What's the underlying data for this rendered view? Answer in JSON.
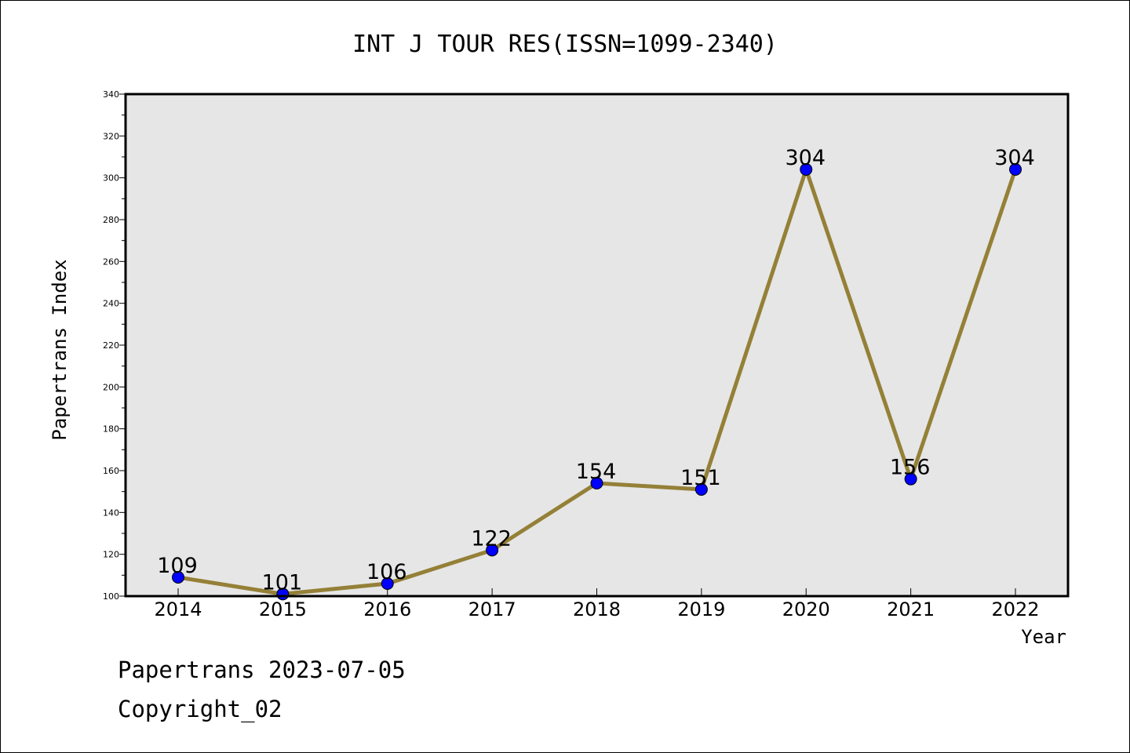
{
  "chart_data": {
    "type": "line",
    "title": "INT J TOUR RES(ISSN=1099-2340)",
    "xlabel": "Year",
    "ylabel": "Papertrans Index",
    "categories": [
      "2014",
      "2015",
      "2016",
      "2017",
      "2018",
      "2019",
      "2020",
      "2021",
      "2022"
    ],
    "values": [
      109,
      101,
      106,
      122,
      154,
      151,
      304,
      156,
      304
    ],
    "data_labels": [
      "109",
      "101",
      "106",
      "122",
      "154",
      "151",
      "304",
      "156",
      "304"
    ],
    "ylim": [
      100,
      340
    ],
    "yticks": [
      100,
      120,
      140,
      160,
      180,
      200,
      220,
      240,
      260,
      280,
      300,
      320,
      340
    ],
    "ytick_labels": [
      "100",
      "120",
      "140",
      "160",
      "180",
      "200",
      "220",
      "240",
      "260",
      "280",
      "300",
      "320",
      "340"
    ],
    "grid": false,
    "legend": "none",
    "colors": {
      "line": "#948037",
      "marker": "#0000ff",
      "plot_bg": "#e6e6e6"
    }
  },
  "footer": {
    "line1": "Papertrans 2023-07-05",
    "line2": "Copyright_02"
  }
}
